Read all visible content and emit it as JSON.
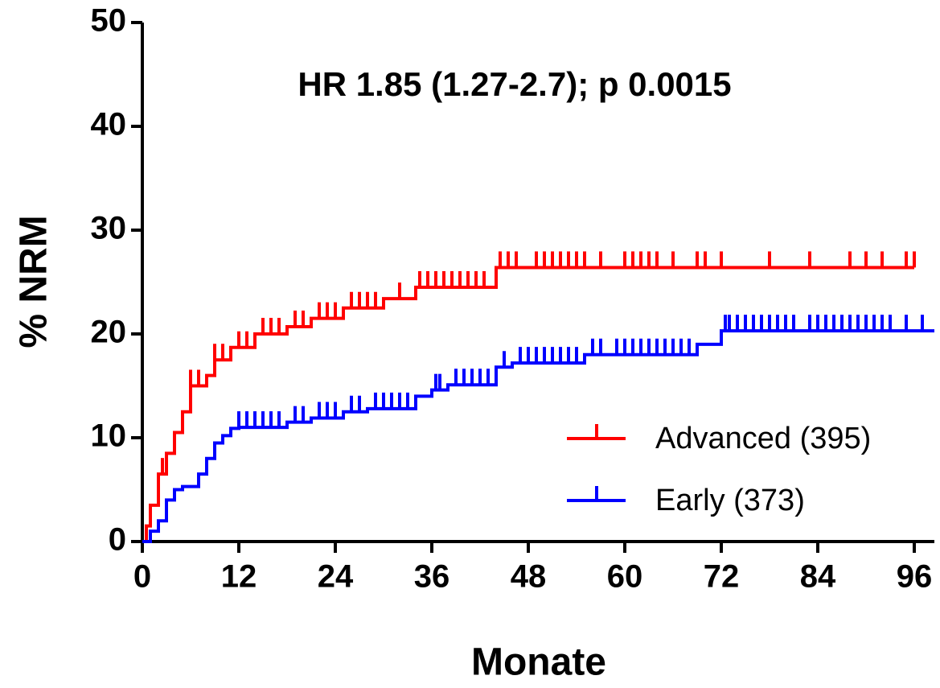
{
  "chart_data": {
    "type": "step",
    "annotation": "HR 1.85 (1.27-2.7); p 0.0015",
    "x_label": "Monate",
    "y_label": "% NRM",
    "xlim": [
      0,
      98.5
    ],
    "ylim": [
      0,
      50
    ],
    "xticks": [
      0,
      12,
      24,
      36,
      48,
      60,
      72,
      84,
      96
    ],
    "yticks": [
      0,
      10,
      20,
      30,
      40,
      50
    ],
    "legend": "lower right",
    "series": [
      {
        "name": "Advanced (395)",
        "color": "#ff0000",
        "x": [
          0,
          0.5,
          1,
          2,
          3,
          4,
          5,
          6,
          8,
          9,
          11,
          14,
          18,
          21,
          25,
          30,
          34,
          44,
          96
        ],
        "values": [
          0,
          1.5,
          3.5,
          6.5,
          8.5,
          10.5,
          12.5,
          15,
          16,
          17.5,
          18.7,
          20,
          20.7,
          21.5,
          22.5,
          23.4,
          24.5,
          26.4,
          26.4
        ],
        "censored": [
          2.5,
          6,
          7,
          9,
          10,
          12,
          13,
          15,
          16,
          17,
          19,
          20,
          22,
          23,
          24,
          26,
          27,
          28,
          29,
          32,
          34.5,
          35.5,
          36.5,
          37.5,
          38.5,
          39.5,
          40.5,
          41.5,
          42.5,
          44.5,
          45.5,
          46.5,
          49,
          50,
          51,
          52,
          53,
          54,
          55,
          57,
          60,
          61,
          62,
          63,
          64,
          66,
          69,
          70,
          72,
          78,
          83,
          88,
          90,
          92,
          95,
          96
        ]
      },
      {
        "name": "Early (373)",
        "color": "#0000ff",
        "x": [
          0,
          1,
          2,
          3,
          4,
          5,
          7,
          8,
          9,
          10,
          11,
          12,
          18,
          21,
          25,
          28,
          34,
          36,
          38,
          44,
          46,
          55,
          69,
          72,
          98.5
        ],
        "values": [
          0,
          1,
          2,
          4,
          5,
          5.3,
          6.5,
          8,
          9.5,
          10.2,
          10.9,
          11,
          11.5,
          11.9,
          12.5,
          12.8,
          14,
          14.6,
          15.1,
          16.8,
          17.2,
          18,
          19,
          20.3,
          20.3
        ],
        "censored": [
          12,
          13,
          14,
          15,
          16,
          17,
          19,
          20,
          22,
          23,
          24,
          26,
          27,
          29,
          30,
          31,
          32,
          33,
          36.5,
          37,
          39,
          40,
          41,
          42,
          43,
          45,
          47,
          48,
          49,
          50,
          51,
          52,
          53,
          54,
          56,
          57,
          59,
          60,
          61,
          62,
          63,
          64,
          65,
          66,
          67,
          68,
          72.5,
          73,
          74,
          75,
          76,
          77,
          78,
          79,
          80,
          81,
          83,
          84,
          85,
          86,
          87,
          88,
          89,
          90,
          91,
          92,
          93,
          95,
          97
        ]
      }
    ]
  }
}
